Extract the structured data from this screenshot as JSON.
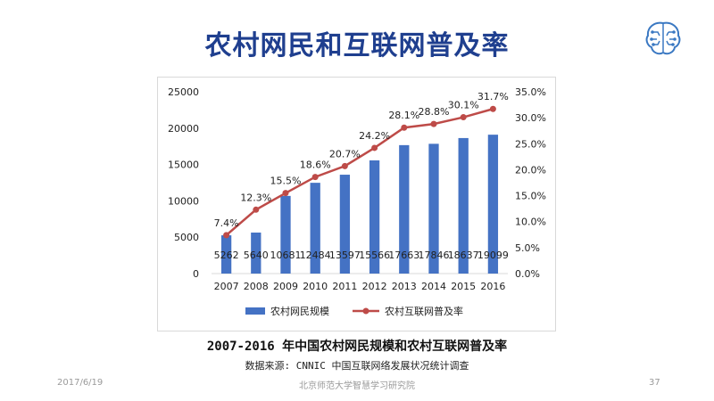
{
  "slide": {
    "title": "农村网民和互联网普及率",
    "caption": "2007-2016 年中国农村网民规模和农村互联网普及率",
    "source": "数据来源: CNNIC 中国互联网络发展状况统计调查",
    "footer_date": "2017/6/19",
    "footer_org": "北京师范大学智慧学习研究院",
    "page_number": "37"
  },
  "colors": {
    "title": "#1f3f8f",
    "bar": "#4472c4",
    "line": "#be4b48",
    "logo": "#3a78c2"
  },
  "chart_data": {
    "type": "bar",
    "categories": [
      "2007",
      "2008",
      "2009",
      "2010",
      "2011",
      "2012",
      "2013",
      "2014",
      "2015",
      "2016"
    ],
    "series": [
      {
        "name": "农村网民规模",
        "type": "bar",
        "axis": "left",
        "values": [
          5262,
          5640,
          10681,
          12484,
          13597,
          15566,
          17663,
          17846,
          18637,
          19099
        ],
        "labels": [
          "5262",
          "5640",
          "10681",
          "12484",
          "13597",
          "15566",
          "17663",
          "17846",
          "18637",
          "19099"
        ]
      },
      {
        "name": "农村互联网普及率",
        "type": "line",
        "axis": "right",
        "values": [
          7.4,
          12.3,
          15.5,
          18.6,
          20.7,
          24.2,
          28.1,
          28.8,
          30.1,
          31.7
        ],
        "labels": [
          "7.4%",
          "12.3%",
          "15.5%",
          "18.6%",
          "20.7%",
          "24.2%",
          "28.1%",
          "28.8%",
          "30.1%",
          "31.7%"
        ]
      }
    ],
    "y_left": {
      "min": 0,
      "max": 25000,
      "step": 5000,
      "ticks": [
        "0",
        "5000",
        "10000",
        "15000",
        "20000",
        "25000"
      ]
    },
    "y_right": {
      "min": 0,
      "max": 35,
      "step": 5,
      "ticks": [
        "0.0%",
        "5.0%",
        "10.0%",
        "15.0%",
        "20.0%",
        "25.0%",
        "30.0%",
        "35.0%"
      ]
    },
    "grid": false,
    "legend_position": "bottom"
  }
}
